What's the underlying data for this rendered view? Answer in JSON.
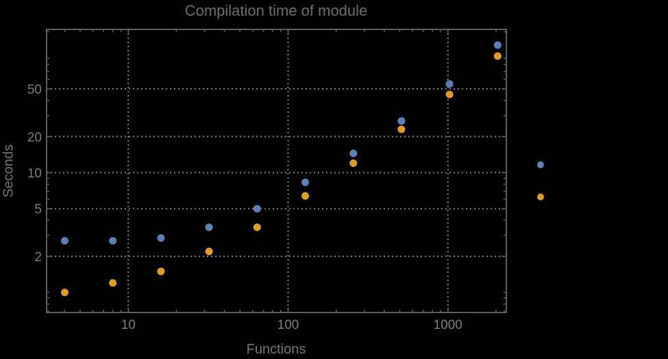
{
  "chart_data": {
    "type": "scatter",
    "title": "Compilation time of module",
    "xlabel": "Functions",
    "ylabel": "Seconds",
    "log_x": true,
    "log_y": true,
    "x": [
      4,
      8,
      16,
      32,
      64,
      128,
      256,
      512,
      1024,
      2048
    ],
    "series": [
      {
        "name": "blue",
        "color": "#5E81B5",
        "values": [
          2.7,
          2.7,
          2.85,
          3.5,
          5.0,
          8.3,
          14.5,
          27,
          55,
          116
        ]
      },
      {
        "name": "orange",
        "color": "#E19C24",
        "values": [
          1.0,
          1.2,
          1.5,
          2.2,
          3.5,
          6.4,
          12,
          23,
          45,
          94
        ]
      }
    ],
    "xlim": [
      3.08,
      2320
    ],
    "ylim": [
      0.68,
      157
    ],
    "x_tick_values": [
      10,
      100,
      1000
    ],
    "x_tick_labels": [
      "10",
      "100",
      "1000"
    ],
    "x_minor_ticks": [
      4,
      5,
      6,
      7,
      8,
      9,
      20,
      30,
      40,
      50,
      60,
      70,
      80,
      90,
      200,
      300,
      400,
      500,
      600,
      700,
      800,
      900,
      2000
    ],
    "y_tick_values": [
      2,
      5,
      10,
      20,
      50
    ],
    "y_tick_labels": [
      "2",
      "5",
      "10",
      "20",
      "50"
    ],
    "y_minor_ticks": [
      0.7,
      0.8,
      0.9,
      1,
      3,
      4,
      6,
      7,
      8,
      9,
      30,
      40,
      60,
      70,
      80,
      90,
      150
    ],
    "grid": "dotted lines at labeled ticks, all four frame edges ticked",
    "legend": {
      "position": "right-of-plot",
      "labels_visible": false,
      "items": [
        {
          "series": "blue",
          "color": "#5E81B5"
        },
        {
          "series": "orange",
          "color": "#E19C24"
        }
      ]
    },
    "colors": {
      "background": "#000000",
      "frame": "#5f5f5f",
      "grid": "#7e7e7e",
      "tick_labels": "#7d7d7d",
      "axis_labels": "#757575",
      "title": "#6d6d6d"
    }
  }
}
